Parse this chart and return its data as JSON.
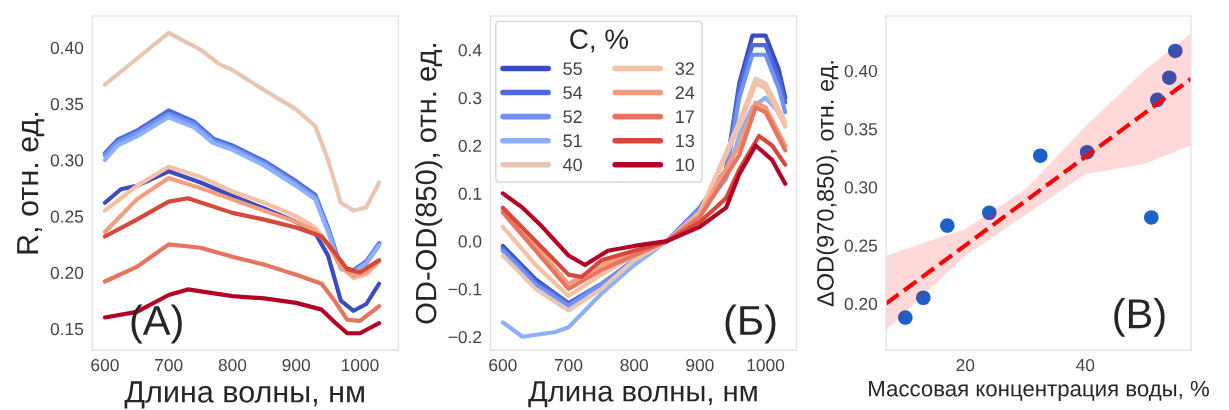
{
  "chart_data": [
    {
      "type": "line",
      "xlabel": "Длина волны, нм",
      "ylabel": "R, отн. ед.",
      "xlim": [
        580,
        1060
      ],
      "xticks": [
        600,
        700,
        800,
        900,
        1000
      ],
      "ylim": [
        0.131,
        0.428
      ],
      "yticks": [
        {
          "value": 0.15,
          "label": "0.15"
        },
        {
          "value": 0.2,
          "label": "0.20"
        },
        {
          "value": 0.25,
          "label": "0.25"
        },
        {
          "value": 0.3,
          "label": "0.30"
        },
        {
          "value": 0.35,
          "label": "0.35"
        },
        {
          "value": 0.4,
          "label": "0.40"
        }
      ],
      "grid": false,
      "legend": false,
      "annotations": [
        "(A)"
      ],
      "series": [
        {
          "color": "#e8c6b4",
          "x": [
            600,
            650,
            700,
            750,
            780,
            800,
            850,
            900,
            930,
            950,
            970,
            990,
            1010,
            1030
          ],
          "values": [
            0.367,
            0.39,
            0.413,
            0.398,
            0.385,
            0.38,
            0.362,
            0.345,
            0.33,
            0.3,
            0.262,
            0.255,
            0.258,
            0.28
          ]
        },
        {
          "color": "#4f6bdb",
          "x": [
            600,
            620,
            650,
            700,
            740,
            770,
            800,
            850,
            900,
            930,
            950,
            970,
            990,
            1010,
            1030
          ],
          "values": [
            0.306,
            0.318,
            0.326,
            0.344,
            0.334,
            0.319,
            0.313,
            0.299,
            0.281,
            0.269,
            0.24,
            0.205,
            0.202,
            0.21,
            0.226
          ]
        },
        {
          "color": "#6f92f3",
          "x": [
            600,
            620,
            650,
            700,
            740,
            770,
            800,
            850,
            900,
            930,
            950,
            970,
            990,
            1010,
            1030
          ],
          "values": [
            0.304,
            0.316,
            0.324,
            0.341,
            0.332,
            0.317,
            0.311,
            0.297,
            0.279,
            0.267,
            0.238,
            0.204,
            0.201,
            0.209,
            0.225
          ]
        },
        {
          "color": "#8db0fe",
          "x": [
            600,
            620,
            650,
            700,
            740,
            770,
            800,
            850,
            900,
            930,
            950,
            970,
            990,
            1010,
            1030
          ],
          "values": [
            0.3,
            0.313,
            0.321,
            0.338,
            0.329,
            0.315,
            0.309,
            0.295,
            0.277,
            0.265,
            0.236,
            0.203,
            0.2,
            0.208,
            0.224
          ]
        },
        {
          "color": "#3b4cc0",
          "x": [
            600,
            625,
            650,
            700,
            750,
            800,
            850,
            900,
            930,
            950,
            970,
            990,
            1010,
            1030
          ],
          "values": [
            0.262,
            0.274,
            0.277,
            0.29,
            0.28,
            0.268,
            0.257,
            0.245,
            0.235,
            0.215,
            0.175,
            0.166,
            0.172,
            0.19
          ]
        },
        {
          "color": "#f5c0a4",
          "x": [
            600,
            650,
            700,
            750,
            800,
            850,
            900,
            930,
            950,
            970,
            990,
            1010,
            1030
          ],
          "values": [
            0.255,
            0.277,
            0.294,
            0.285,
            0.272,
            0.262,
            0.25,
            0.24,
            0.225,
            0.205,
            0.195,
            0.198,
            0.21
          ]
        },
        {
          "color": "#f39c7e",
          "x": [
            600,
            650,
            700,
            750,
            800,
            850,
            900,
            930,
            950,
            970,
            990,
            1010,
            1030
          ],
          "values": [
            0.236,
            0.265,
            0.284,
            0.275,
            0.265,
            0.255,
            0.245,
            0.237,
            0.225,
            0.205,
            0.197,
            0.2,
            0.21
          ]
        },
        {
          "color": "#d6483b",
          "x": [
            600,
            650,
            700,
            730,
            800,
            850,
            900,
            940,
            960,
            980,
            1000,
            1030
          ],
          "values": [
            0.232,
            0.247,
            0.263,
            0.266,
            0.253,
            0.247,
            0.24,
            0.232,
            0.218,
            0.203,
            0.2,
            0.211
          ]
        },
        {
          "color": "#e6745e",
          "x": [
            600,
            650,
            700,
            750,
            800,
            850,
            900,
            940,
            960,
            980,
            1000,
            1030
          ],
          "values": [
            0.192,
            0.205,
            0.225,
            0.222,
            0.214,
            0.207,
            0.198,
            0.19,
            0.175,
            0.158,
            0.157,
            0.17
          ]
        },
        {
          "color": "#b40426",
          "x": [
            600,
            650,
            700,
            730,
            800,
            850,
            900,
            940,
            960,
            980,
            1000,
            1030
          ],
          "values": [
            0.16,
            0.165,
            0.18,
            0.185,
            0.179,
            0.177,
            0.173,
            0.167,
            0.156,
            0.146,
            0.146,
            0.155
          ]
        }
      ]
    },
    {
      "type": "line",
      "xlabel": "Длина волны, нм",
      "ylabel": "OD-OD(850), отн. ед.",
      "xlim": [
        581,
        1047
      ],
      "xticks": [
        600,
        700,
        800,
        900,
        1000
      ],
      "ylim": [
        -0.228,
        0.471
      ],
      "yticks": [
        {
          "value": -0.2,
          "label": "−0.2"
        },
        {
          "value": -0.1,
          "label": "−0.1"
        },
        {
          "value": 0,
          "label": "0.0"
        },
        {
          "value": 0.1,
          "label": "0.1"
        },
        {
          "value": 0.2,
          "label": "0.2"
        },
        {
          "value": 0.3,
          "label": "0.3"
        },
        {
          "value": 0.4,
          "label": "0.4"
        }
      ],
      "grid": false,
      "legend": "top left",
      "legend_title": "C, %",
      "annotations": [
        "(Б)"
      ],
      "series": [
        {
          "name": "55",
          "color": "#3b4cc0",
          "x": [
            600,
            650,
            700,
            750,
            800,
            850,
            900,
            940,
            960,
            980,
            1000,
            1020,
            1030
          ],
          "values": [
            -0.01,
            -0.08,
            -0.13,
            -0.09,
            -0.04,
            0,
            0.07,
            0.15,
            0.33,
            0.43,
            0.43,
            0.36,
            0.3
          ]
        },
        {
          "name": "54",
          "color": "#4f6bdb",
          "x": [
            600,
            650,
            700,
            750,
            800,
            850,
            900,
            940,
            960,
            980,
            1000,
            1020,
            1030
          ],
          "values": [
            -0.015,
            -0.085,
            -0.13,
            -0.09,
            -0.04,
            0,
            0.07,
            0.15,
            0.32,
            0.41,
            0.41,
            0.34,
            0.29
          ]
        },
        {
          "name": "52",
          "color": "#6f92f3",
          "x": [
            600,
            650,
            700,
            750,
            800,
            850,
            900,
            940,
            960,
            980,
            1000,
            1020,
            1030
          ],
          "values": [
            -0.02,
            -0.09,
            -0.135,
            -0.09,
            -0.04,
            0,
            0.07,
            0.14,
            0.3,
            0.39,
            0.39,
            0.32,
            0.27
          ]
        },
        {
          "name": "51",
          "color": "#8db0fe",
          "x": [
            600,
            630,
            680,
            700,
            750,
            800,
            850,
            900,
            940,
            960,
            980,
            1000,
            1020,
            1030
          ],
          "values": [
            -0.17,
            -0.2,
            -0.19,
            -0.18,
            -0.11,
            -0.05,
            0,
            0.06,
            0.13,
            0.22,
            0.28,
            0.3,
            0.27,
            0.24
          ]
        },
        {
          "name": "40",
          "color": "#e8c6b4",
          "x": [
            600,
            650,
            700,
            750,
            800,
            850,
            900,
            960,
            985,
            1000,
            1030
          ],
          "values": [
            -0.03,
            -0.1,
            -0.145,
            -0.1,
            -0.04,
            0,
            0.06,
            0.25,
            0.34,
            0.33,
            0.25
          ]
        },
        {
          "name": "32",
          "color": "#f5c0a4",
          "x": [
            600,
            650,
            700,
            750,
            800,
            850,
            900,
            960,
            985,
            1000,
            1030
          ],
          "values": [
            0.03,
            -0.05,
            -0.115,
            -0.07,
            -0.03,
            0,
            0.06,
            0.24,
            0.33,
            0.32,
            0.24
          ]
        },
        {
          "name": "24",
          "color": "#f39c7e",
          "x": [
            600,
            650,
            700,
            750,
            800,
            850,
            900,
            960,
            985,
            1000,
            1030
          ],
          "values": [
            0.065,
            -0.01,
            -0.09,
            -0.05,
            -0.025,
            0,
            0.055,
            0.2,
            0.29,
            0.28,
            0.2
          ]
        },
        {
          "name": "17",
          "color": "#e6745e",
          "x": [
            600,
            650,
            700,
            750,
            800,
            850,
            900,
            960,
            985,
            1000,
            1030
          ],
          "values": [
            0.06,
            -0.02,
            -0.1,
            -0.06,
            -0.03,
            0,
            0.05,
            0.18,
            0.28,
            0.27,
            0.19
          ]
        },
        {
          "name": "13",
          "color": "#d6483b",
          "x": [
            600,
            650,
            700,
            720,
            750,
            800,
            850,
            900,
            940,
            960,
            990,
            1010,
            1030
          ],
          "values": [
            0.07,
            0.0,
            -0.07,
            -0.075,
            -0.04,
            -0.02,
            0,
            0.04,
            0.09,
            0.15,
            0.22,
            0.2,
            0.16
          ]
        },
        {
          "name": "10",
          "color": "#b40426",
          "x": [
            600,
            630,
            660,
            700,
            725,
            760,
            800,
            850,
            900,
            940,
            960,
            985,
            1010,
            1030
          ],
          "values": [
            0.1,
            0.07,
            0.03,
            -0.03,
            -0.05,
            -0.02,
            -0.01,
            0,
            0.03,
            0.07,
            0.14,
            0.2,
            0.17,
            0.12
          ]
        }
      ]
    },
    {
      "type": "scatter",
      "xlabel": "Массовая концентрация воды, %",
      "ylabel": "ΔOD(970,850), отн. ед.",
      "xlim": [
        6.8,
        57.6
      ],
      "xticks": [
        20,
        40
      ],
      "ylim": [
        0.16,
        0.447
      ],
      "yticks": [
        {
          "value": 0.2,
          "label": "0.20"
        },
        {
          "value": 0.25,
          "label": "0.25"
        },
        {
          "value": 0.3,
          "label": "0.30"
        },
        {
          "value": 0.35,
          "label": "0.35"
        },
        {
          "value": 0.4,
          "label": "0.40"
        }
      ],
      "grid": false,
      "legend": false,
      "annotations": [
        "(В)"
      ],
      "series": [
        {
          "marker": "circle",
          "color": "#1f5fc8",
          "x": [
            10,
            13,
            17,
            24,
            32.5,
            40.3,
            51,
            52,
            54,
            55
          ],
          "values": [
            0.188,
            0.205,
            0.267,
            0.278,
            0.327,
            0.33,
            0.274,
            0.375,
            0.394,
            0.417
          ]
        },
        {
          "type": "line",
          "line_style": "dashed",
          "color": "#ff0000",
          "x": [
            6.8,
            20,
            30,
            40,
            50,
            57.6
          ],
          "values": [
            0.2,
            0.25,
            0.288,
            0.326,
            0.364,
            0.393
          ],
          "lower": [
            0.177,
            0.241,
            0.276,
            0.311,
            0.32,
            0.336
          ],
          "upper": [
            0.241,
            0.264,
            0.298,
            0.352,
            0.401,
            0.432
          ]
        }
      ]
    }
  ]
}
